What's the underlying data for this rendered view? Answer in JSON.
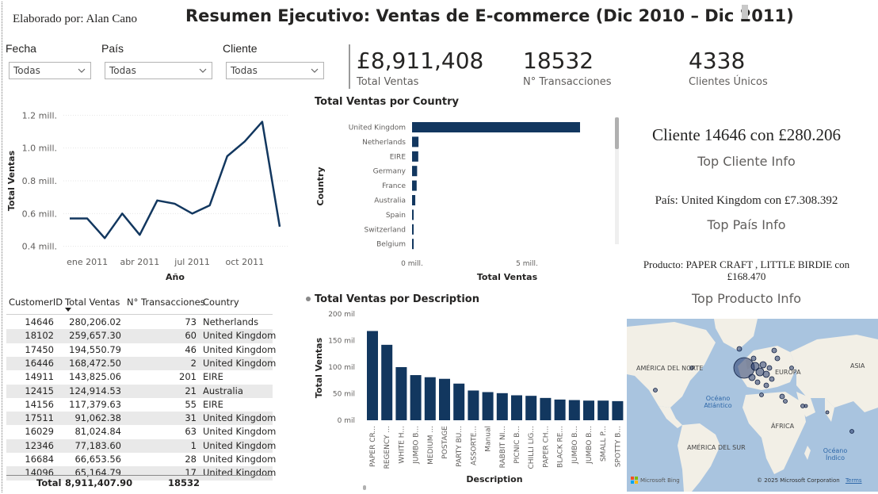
{
  "header": {
    "author": "Elaborado por: Alan Cano",
    "title": "Resumen Ejecutivo: Ventas de E-commerce (Dic 2010 – Dic 2011)"
  },
  "slicers": [
    {
      "label": "Fecha",
      "value": "Todas"
    },
    {
      "label": "País",
      "value": "Todas"
    },
    {
      "label": "Cliente",
      "value": "Todas"
    }
  ],
  "kpis": [
    {
      "value": "£8,911,408",
      "label": "Total Ventas"
    },
    {
      "value": "18532",
      "label": "N° Transacciones"
    },
    {
      "value": "4338",
      "label": "Clientes Únicos"
    }
  ],
  "line_chart": {
    "ylabel": "Total Ventas",
    "xlabel": "Año",
    "y_ticks": [
      "1.2 mill.",
      "1.0 mill.",
      "0.8 mill.",
      "0.6 mill.",
      "0.4 mill."
    ],
    "x_ticks": [
      "ene 2011",
      "abr 2011",
      "jul 2011",
      "oct 2011"
    ]
  },
  "country_chart": {
    "title": "Total Ventas por Country",
    "ylabel": "Country",
    "xlabel": "Total Ventas",
    "x_ticks": [
      "0 mill.",
      "5 mill."
    ]
  },
  "desc_chart": {
    "title": "Total Ventas por Description",
    "ylabel": "Total Ventas",
    "xlabel": "Description",
    "y_ticks": [
      "200 mil",
      "150 mil",
      "100 mil",
      "50 mil",
      "0 mil"
    ]
  },
  "table": {
    "headers": [
      "CustomerID",
      "Total Ventas",
      "N° Transacciones",
      "Country"
    ],
    "rows": [
      [
        "14646",
        "280,206.02",
        "73",
        "Netherlands"
      ],
      [
        "18102",
        "259,657.30",
        "60",
        "United Kingdom"
      ],
      [
        "17450",
        "194,550.79",
        "46",
        "United Kingdom"
      ],
      [
        "16446",
        "168,472.50",
        "2",
        "United Kingdom"
      ],
      [
        "14911",
        "143,825.06",
        "201",
        "EIRE"
      ],
      [
        "12415",
        "124,914.53",
        "21",
        "Australia"
      ],
      [
        "14156",
        "117,379.63",
        "55",
        "EIRE"
      ],
      [
        "17511",
        "91,062.38",
        "31",
        "United Kingdom"
      ],
      [
        "16029",
        "81,024.84",
        "63",
        "United Kingdom"
      ],
      [
        "12346",
        "77,183.60",
        "1",
        "United Kingdom"
      ],
      [
        "16684",
        "66,653.56",
        "28",
        "United Kingdom"
      ],
      [
        "14096",
        "65,164.79",
        "17",
        "United Kingdom"
      ]
    ],
    "total": {
      "label": "Total",
      "ventas": "8,911,407.90",
      "transacciones": "18532"
    }
  },
  "info": {
    "top_cliente_value": "Cliente 14646 con £280.206",
    "top_cliente_label": "Top Cliente Info",
    "top_pais_value": "País: United Kingdom con £7.308.392",
    "top_pais_label": "Top País Info",
    "top_producto_value": "Producto: PAPER CRAFT , LITTLE BIRDIE con £168.470",
    "top_producto_label": "Top Producto Info"
  },
  "map": {
    "labels": {
      "na": "AMÉRICA DEL NORTE",
      "eu": "EUROPA",
      "asia": "ASIA",
      "atl": "Océano Atlántico",
      "af": "ÁFRICA",
      "sa": "AMÉRICA DEL SUR",
      "ind": "Océano Índico"
    },
    "bing": "Microsoft Bing",
    "copyright": "© 2025 Microsoft Corporation",
    "terms": "Terms"
  },
  "chart_data": [
    {
      "type": "line",
      "title": "",
      "x": [
        "dic 2010",
        "ene 2011",
        "feb 2011",
        "mar 2011",
        "abr 2011",
        "may 2011",
        "jun 2011",
        "jul 2011",
        "ago 2011",
        "sep 2011",
        "oct 2011",
        "nov 2011",
        "dic 2011"
      ],
      "values": [
        0.57,
        0.57,
        0.45,
        0.6,
        0.47,
        0.68,
        0.66,
        0.6,
        0.65,
        0.95,
        1.04,
        1.16,
        0.52
      ],
      "ylim": [
        0.35,
        1.25
      ],
      "xlabel": "Año",
      "ylabel": "Total Ventas",
      "color": "#12375f"
    },
    {
      "type": "bar",
      "orientation": "horizontal",
      "title": "Total Ventas por Country",
      "categories": [
        "United Kingdom",
        "Netherlands",
        "EIRE",
        "Germany",
        "France",
        "Australia",
        "Spain",
        "Switzerland",
        "Belgium"
      ],
      "values": [
        7.31,
        0.28,
        0.27,
        0.22,
        0.2,
        0.14,
        0.06,
        0.05,
        0.04
      ],
      "xlim": [
        0,
        10
      ],
      "xlabel": "Total Ventas",
      "ylabel": "Country",
      "color": "#12375f"
    },
    {
      "type": "bar",
      "title": "Total Ventas por Description",
      "categories": [
        "PAPER CR...",
        "REGENCY ...",
        "WHITE H...",
        "JUMBO B...",
        "MEDIUM ...",
        "POSTAGE",
        "PARTY BU...",
        "ASSORTE...",
        "Manual",
        "RABBIT NI...",
        "PICNIC B...",
        "CHILLI LIG...",
        "PAPER CH...",
        "BLACK RE...",
        "JUMBO B...",
        "JUMBO B...",
        "SMALL P...",
        "SPOTTY B..."
      ],
      "values": [
        168,
        142,
        100,
        85,
        81,
        78,
        69,
        56,
        53,
        51,
        47,
        46,
        42,
        39,
        38,
        37,
        37,
        36
      ],
      "ylim": [
        0,
        200
      ],
      "xlabel": "Description",
      "ylabel": "Total Ventas",
      "color": "#12375f"
    }
  ]
}
